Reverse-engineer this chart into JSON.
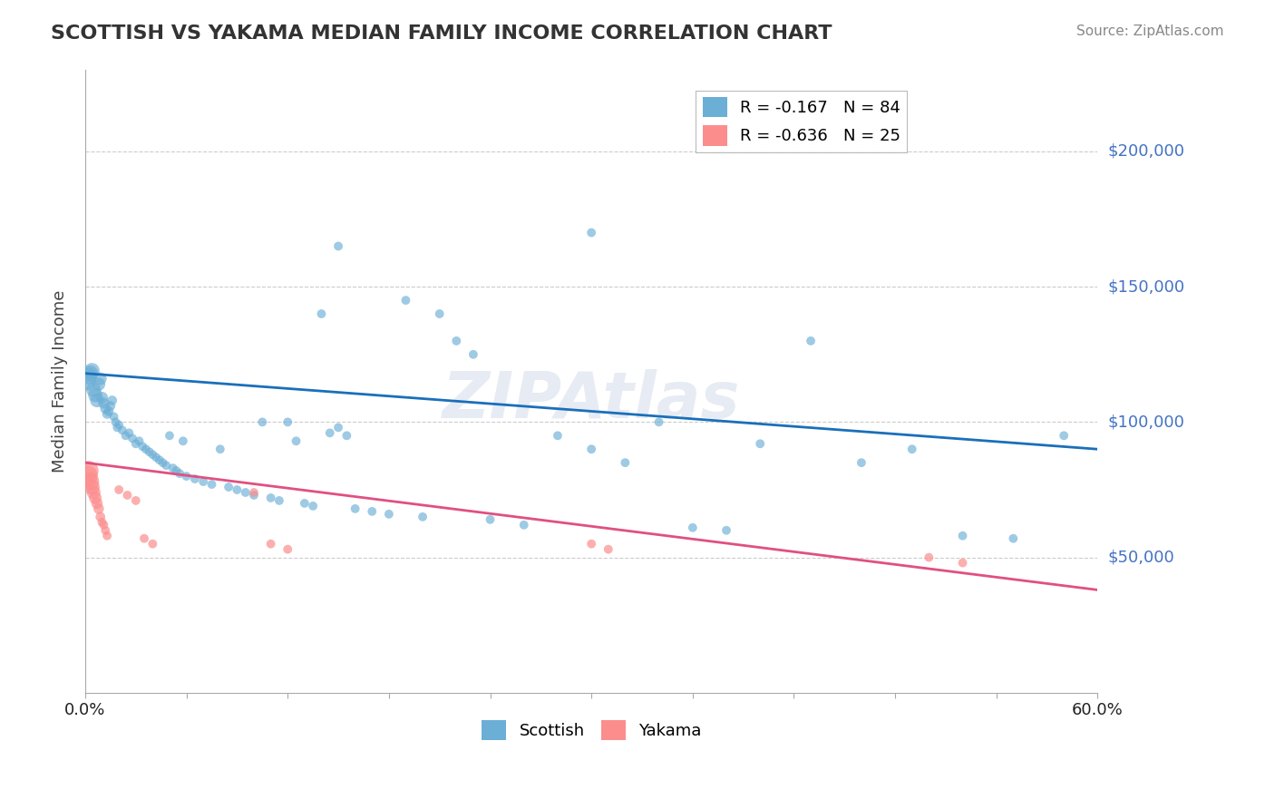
{
  "title": "SCOTTISH VS YAKAMA MEDIAN FAMILY INCOME CORRELATION CHART",
  "source_text": "Source: ZipAtlas.com",
  "xlabel": "",
  "ylabel": "Median Family Income",
  "xlim": [
    0.0,
    0.6
  ],
  "ylim": [
    0,
    230000
  ],
  "xtick_labels": [
    "0.0%",
    "60.0%"
  ],
  "ytick_positions": [
    50000,
    100000,
    150000,
    200000
  ],
  "ytick_labels": [
    "$50,000",
    "$100,000",
    "$150,000",
    "$200,000"
  ],
  "watermark": "ZIPAtlas",
  "legend_entries": [
    {
      "label": "R = -0.167   N = 84",
      "color": "#6baed6"
    },
    {
      "label": "R = -0.636   N = 25",
      "color": "#fc8d8d"
    }
  ],
  "scottish_color": "#6baed6",
  "yakama_color": "#fc8d8d",
  "trendline_scottish_color": "#1a6fba",
  "trendline_yakama_color": "#e05080",
  "background_color": "#ffffff",
  "grid_color": "#cccccc",
  "title_color": "#333333",
  "ytick_color": "#4472C4",
  "scottish_points": [
    [
      0.001,
      115000
    ],
    [
      0.002,
      117000
    ],
    [
      0.003,
      118000
    ],
    [
      0.004,
      119000
    ],
    [
      0.005,
      112000
    ],
    [
      0.006,
      110000
    ],
    [
      0.007,
      108000
    ],
    [
      0.008,
      114000
    ],
    [
      0.009,
      116000
    ],
    [
      0.01,
      109000
    ],
    [
      0.011,
      107000
    ],
    [
      0.012,
      105000
    ],
    [
      0.013,
      103000
    ],
    [
      0.014,
      104000
    ],
    [
      0.015,
      106000
    ],
    [
      0.016,
      108000
    ],
    [
      0.017,
      102000
    ],
    [
      0.018,
      100000
    ],
    [
      0.019,
      98000
    ],
    [
      0.02,
      99000
    ],
    [
      0.022,
      97000
    ],
    [
      0.024,
      95000
    ],
    [
      0.026,
      96000
    ],
    [
      0.028,
      94000
    ],
    [
      0.03,
      92000
    ],
    [
      0.032,
      93000
    ],
    [
      0.034,
      91000
    ],
    [
      0.036,
      90000
    ],
    [
      0.038,
      89000
    ],
    [
      0.04,
      88000
    ],
    [
      0.042,
      87000
    ],
    [
      0.044,
      86000
    ],
    [
      0.046,
      85000
    ],
    [
      0.048,
      84000
    ],
    [
      0.05,
      95000
    ],
    [
      0.052,
      83000
    ],
    [
      0.054,
      82000
    ],
    [
      0.056,
      81000
    ],
    [
      0.058,
      93000
    ],
    [
      0.06,
      80000
    ],
    [
      0.065,
      79000
    ],
    [
      0.07,
      78000
    ],
    [
      0.075,
      77000
    ],
    [
      0.08,
      90000
    ],
    [
      0.085,
      76000
    ],
    [
      0.09,
      75000
    ],
    [
      0.095,
      74000
    ],
    [
      0.1,
      73000
    ],
    [
      0.105,
      100000
    ],
    [
      0.11,
      72000
    ],
    [
      0.115,
      71000
    ],
    [
      0.12,
      100000
    ],
    [
      0.125,
      93000
    ],
    [
      0.13,
      70000
    ],
    [
      0.135,
      69000
    ],
    [
      0.14,
      140000
    ],
    [
      0.145,
      96000
    ],
    [
      0.15,
      98000
    ],
    [
      0.155,
      95000
    ],
    [
      0.16,
      68000
    ],
    [
      0.17,
      67000
    ],
    [
      0.18,
      66000
    ],
    [
      0.19,
      145000
    ],
    [
      0.2,
      65000
    ],
    [
      0.21,
      140000
    ],
    [
      0.22,
      130000
    ],
    [
      0.23,
      125000
    ],
    [
      0.24,
      64000
    ],
    [
      0.26,
      62000
    ],
    [
      0.28,
      95000
    ],
    [
      0.3,
      90000
    ],
    [
      0.32,
      85000
    ],
    [
      0.34,
      100000
    ],
    [
      0.36,
      61000
    ],
    [
      0.38,
      60000
    ],
    [
      0.4,
      92000
    ],
    [
      0.43,
      130000
    ],
    [
      0.46,
      85000
    ],
    [
      0.49,
      90000
    ],
    [
      0.52,
      58000
    ],
    [
      0.55,
      57000
    ],
    [
      0.58,
      95000
    ],
    [
      0.3,
      170000
    ],
    [
      0.15,
      165000
    ]
  ],
  "scottish_sizes": [
    200,
    180,
    160,
    150,
    140,
    130,
    120,
    110,
    100,
    90,
    80,
    70,
    60,
    60,
    60,
    60,
    50,
    50,
    50,
    50,
    50,
    50,
    50,
    50,
    50,
    50,
    50,
    50,
    50,
    50,
    50,
    50,
    50,
    50,
    50,
    50,
    50,
    50,
    50,
    50,
    50,
    50,
    50,
    50,
    50,
    50,
    50,
    50,
    50,
    50,
    50,
    50,
    50,
    50,
    50,
    50,
    50,
    50,
    50,
    50,
    50,
    50,
    50,
    50,
    50,
    50,
    50,
    50,
    50,
    50,
    50,
    50,
    50,
    50,
    50,
    50,
    50,
    50,
    50,
    50,
    50,
    50,
    50,
    50
  ],
  "yakama_points": [
    [
      0.001,
      80000
    ],
    [
      0.002,
      82000
    ],
    [
      0.003,
      78000
    ],
    [
      0.004,
      76000
    ],
    [
      0.005,
      74000
    ],
    [
      0.006,
      72000
    ],
    [
      0.007,
      70000
    ],
    [
      0.008,
      68000
    ],
    [
      0.009,
      65000
    ],
    [
      0.01,
      63000
    ],
    [
      0.011,
      62000
    ],
    [
      0.012,
      60000
    ],
    [
      0.013,
      58000
    ],
    [
      0.02,
      75000
    ],
    [
      0.025,
      73000
    ],
    [
      0.03,
      71000
    ],
    [
      0.035,
      57000
    ],
    [
      0.04,
      55000
    ],
    [
      0.1,
      74000
    ],
    [
      0.11,
      55000
    ],
    [
      0.12,
      53000
    ],
    [
      0.3,
      55000
    ],
    [
      0.31,
      53000
    ],
    [
      0.5,
      50000
    ],
    [
      0.52,
      48000
    ]
  ],
  "yakama_sizes": [
    300,
    250,
    200,
    150,
    120,
    100,
    80,
    70,
    60,
    50,
    50,
    50,
    50,
    50,
    50,
    50,
    50,
    50,
    50,
    50,
    50,
    50,
    50,
    50,
    50
  ],
  "scottish_R": -0.167,
  "scottish_N": 84,
  "yakama_R": -0.636,
  "yakama_N": 25
}
